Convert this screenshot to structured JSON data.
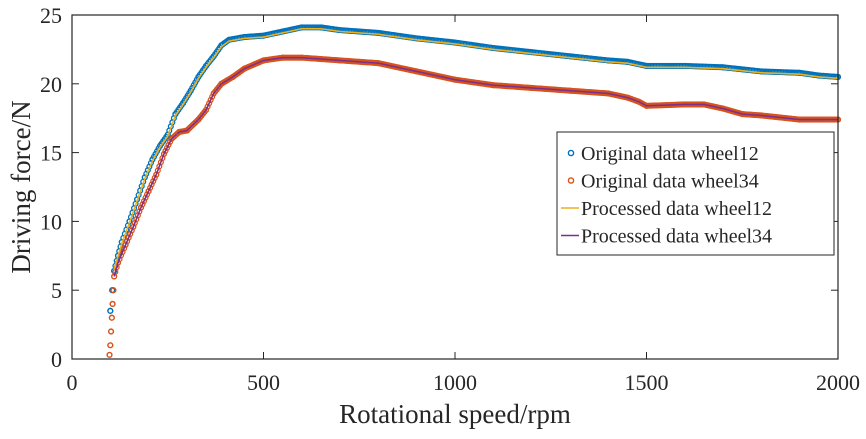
{
  "chart_data": {
    "type": "line",
    "title": "",
    "xlabel": "Rotational speed/rpm",
    "ylabel": "Driving force/N",
    "xlim": [
      0,
      2000
    ],
    "ylim": [
      0,
      25
    ],
    "xticks": [
      "0",
      "500",
      "1000",
      "1500",
      "2000"
    ],
    "yticks": [
      "0",
      "5",
      "10",
      "15",
      "20",
      "25"
    ],
    "grid": false,
    "legend_position": "right",
    "series": [
      {
        "name": "Original data wheel12",
        "style": "markers",
        "color": "#0072BD",
        "points": [
          [
            100,
            3.5
          ],
          [
            105,
            5
          ],
          [
            110,
            6.4
          ],
          [
            120,
            7.5
          ],
          [
            130,
            8.5
          ],
          [
            150,
            10
          ],
          [
            170,
            11.6
          ],
          [
            190,
            13.2
          ],
          [
            210,
            14.5
          ],
          [
            230,
            15.5
          ],
          [
            250,
            16.3
          ],
          [
            270,
            17.8
          ],
          [
            290,
            18.6
          ],
          [
            310,
            19.5
          ],
          [
            330,
            20.5
          ],
          [
            350,
            21.3
          ],
          [
            370,
            22
          ],
          [
            390,
            22.8
          ],
          [
            410,
            23.2
          ],
          [
            450,
            23.4
          ],
          [
            500,
            23.5
          ],
          [
            550,
            23.8
          ],
          [
            600,
            24.1
          ],
          [
            650,
            24.1
          ],
          [
            700,
            23.9
          ],
          [
            800,
            23.7
          ],
          [
            900,
            23.3
          ],
          [
            1000,
            23
          ],
          [
            1100,
            22.6
          ],
          [
            1200,
            22.3
          ],
          [
            1300,
            22
          ],
          [
            1400,
            21.7
          ],
          [
            1450,
            21.6
          ],
          [
            1500,
            21.3
          ],
          [
            1600,
            21.3
          ],
          [
            1700,
            21.2
          ],
          [
            1800,
            20.9
          ],
          [
            1900,
            20.8
          ],
          [
            1950,
            20.6
          ],
          [
            2000,
            20.5
          ]
        ]
      },
      {
        "name": "Original data wheel34",
        "style": "markers",
        "color": "#D95319",
        "points": [
          [
            98,
            0.3
          ],
          [
            100,
            1
          ],
          [
            102,
            2
          ],
          [
            104,
            3
          ],
          [
            106,
            4
          ],
          [
            108,
            5
          ],
          [
            110,
            6
          ],
          [
            120,
            7
          ],
          [
            140,
            8.3
          ],
          [
            160,
            9.6
          ],
          [
            180,
            11
          ],
          [
            200,
            12.2
          ],
          [
            220,
            13.4
          ],
          [
            240,
            14.9
          ],
          [
            260,
            16
          ],
          [
            280,
            16.5
          ],
          [
            300,
            16.6
          ],
          [
            330,
            17.4
          ],
          [
            350,
            18.1
          ],
          [
            370,
            19.3
          ],
          [
            390,
            20
          ],
          [
            420,
            20.5
          ],
          [
            450,
            21.1
          ],
          [
            500,
            21.7
          ],
          [
            550,
            21.9
          ],
          [
            600,
            21.9
          ],
          [
            650,
            21.8
          ],
          [
            700,
            21.7
          ],
          [
            800,
            21.5
          ],
          [
            900,
            20.9
          ],
          [
            1000,
            20.3
          ],
          [
            1100,
            19.9
          ],
          [
            1200,
            19.7
          ],
          [
            1300,
            19.5
          ],
          [
            1400,
            19.3
          ],
          [
            1450,
            19
          ],
          [
            1480,
            18.7
          ],
          [
            1500,
            18.4
          ],
          [
            1600,
            18.5
          ],
          [
            1650,
            18.5
          ],
          [
            1700,
            18.2
          ],
          [
            1750,
            17.8
          ],
          [
            1800,
            17.7
          ],
          [
            1900,
            17.4
          ],
          [
            2000,
            17.4
          ]
        ]
      },
      {
        "name": "Processed data wheel12",
        "style": "line",
        "color": "#EDB120",
        "points": [
          [
            110,
            6.5
          ],
          [
            130,
            8.4
          ],
          [
            150,
            9.9
          ],
          [
            170,
            11.5
          ],
          [
            190,
            13.1
          ],
          [
            210,
            14.4
          ],
          [
            230,
            15.4
          ],
          [
            250,
            16.2
          ],
          [
            270,
            17.7
          ],
          [
            290,
            18.5
          ],
          [
            310,
            19.4
          ],
          [
            330,
            20.4
          ],
          [
            350,
            21.2
          ],
          [
            370,
            21.9
          ],
          [
            390,
            22.7
          ],
          [
            410,
            23.1
          ],
          [
            450,
            23.3
          ],
          [
            500,
            23.4
          ],
          [
            550,
            23.7
          ],
          [
            600,
            24
          ],
          [
            650,
            24
          ],
          [
            700,
            23.8
          ],
          [
            800,
            23.6
          ],
          [
            900,
            23.2
          ],
          [
            1000,
            22.9
          ],
          [
            1100,
            22.5
          ],
          [
            1200,
            22.2
          ],
          [
            1300,
            21.9
          ],
          [
            1400,
            21.6
          ],
          [
            1450,
            21.5
          ],
          [
            1500,
            21.2
          ],
          [
            1600,
            21.2
          ],
          [
            1700,
            21.1
          ],
          [
            1800,
            20.8
          ],
          [
            1900,
            20.7
          ],
          [
            1950,
            20.5
          ],
          [
            2000,
            20.4
          ]
        ]
      },
      {
        "name": "Processed data wheel34",
        "style": "line",
        "color": "#7E2F8E",
        "points": [
          [
            110,
            6
          ],
          [
            120,
            7
          ],
          [
            140,
            8.3
          ],
          [
            160,
            9.6
          ],
          [
            180,
            11
          ],
          [
            200,
            12.2
          ],
          [
            220,
            13.4
          ],
          [
            240,
            14.9
          ],
          [
            260,
            16
          ],
          [
            280,
            16.5
          ],
          [
            300,
            16.6
          ],
          [
            330,
            17.4
          ],
          [
            350,
            18.1
          ],
          [
            370,
            19.3
          ],
          [
            390,
            20
          ],
          [
            420,
            20.5
          ],
          [
            450,
            21.1
          ],
          [
            500,
            21.7
          ],
          [
            550,
            21.9
          ],
          [
            600,
            21.9
          ],
          [
            650,
            21.8
          ],
          [
            700,
            21.7
          ],
          [
            800,
            21.5
          ],
          [
            900,
            20.9
          ],
          [
            1000,
            20.3
          ],
          [
            1100,
            19.9
          ],
          [
            1200,
            19.7
          ],
          [
            1300,
            19.5
          ],
          [
            1400,
            19.3
          ],
          [
            1450,
            19
          ],
          [
            1480,
            18.7
          ],
          [
            1500,
            18.4
          ],
          [
            1600,
            18.5
          ],
          [
            1650,
            18.5
          ],
          [
            1700,
            18.2
          ],
          [
            1750,
            17.8
          ],
          [
            1800,
            17.7
          ],
          [
            1900,
            17.4
          ],
          [
            2000,
            17.4
          ]
        ]
      }
    ]
  }
}
